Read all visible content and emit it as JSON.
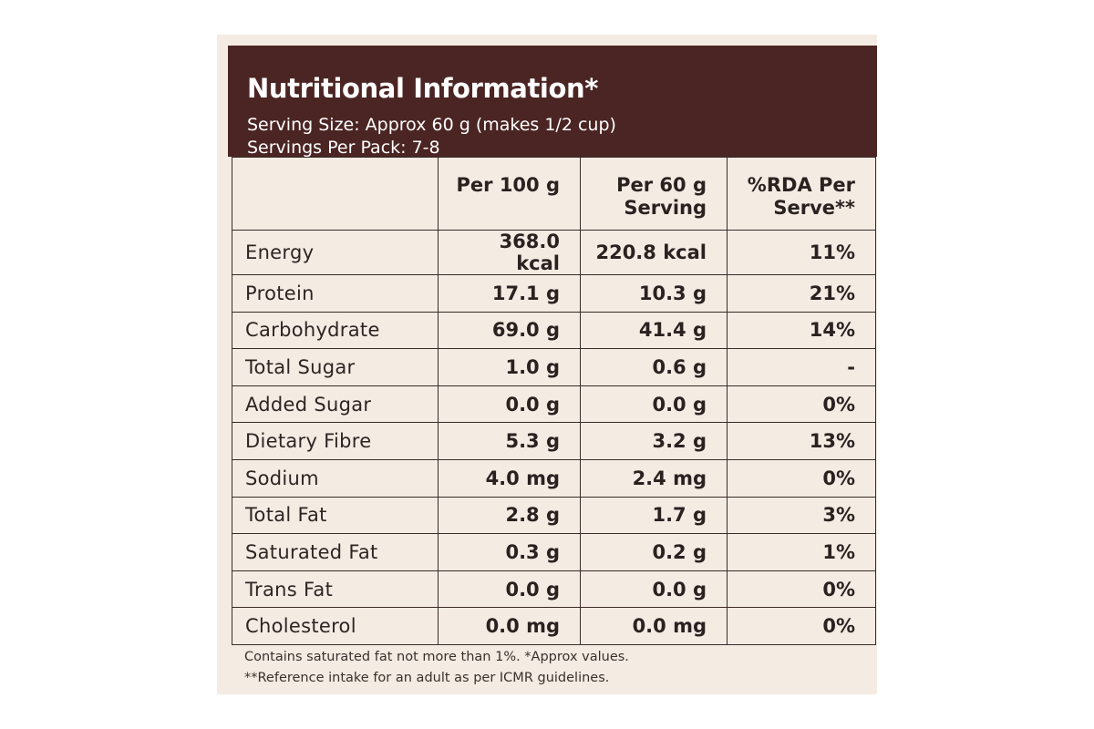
{
  "header": {
    "title": "Nutritional Information*",
    "serving_size": "Serving Size: Approx 60 g (makes 1/2 cup)",
    "servings_per_pack": "Servings Per Pack: 7-8"
  },
  "table": {
    "columns": [
      "",
      "Per 100 g",
      "Per 60 g\nServing",
      "%RDA Per\nServe**"
    ],
    "rows": [
      {
        "nutrient": "Energy",
        "per_100g": "368.0 kcal",
        "per_serving": "220.8 kcal",
        "rda": "11%"
      },
      {
        "nutrient": "Protein",
        "per_100g": "17.1 g",
        "per_serving": "10.3 g",
        "rda": "21%"
      },
      {
        "nutrient": "Carbohydrate",
        "per_100g": "69.0 g",
        "per_serving": "41.4 g",
        "rda": "14%"
      },
      {
        "nutrient": "Total Sugar",
        "per_100g": "1.0 g",
        "per_serving": "0.6 g",
        "rda": "-"
      },
      {
        "nutrient": "Added Sugar",
        "per_100g": "0.0 g",
        "per_serving": "0.0 g",
        "rda": "0%"
      },
      {
        "nutrient": "Dietary Fibre",
        "per_100g": "5.3 g",
        "per_serving": "3.2 g",
        "rda": "13%"
      },
      {
        "nutrient": "Sodium",
        "per_100g": "4.0 mg",
        "per_serving": "2.4 mg",
        "rda": "0%"
      },
      {
        "nutrient": "Total Fat",
        "per_100g": "2.8 g",
        "per_serving": "1.7 g",
        "rda": "3%"
      },
      {
        "nutrient": "Saturated Fat",
        "per_100g": "0.3 g",
        "per_serving": "0.2 g",
        "rda": "1%"
      },
      {
        "nutrient": "Trans Fat",
        "per_100g": "0.0 g",
        "per_serving": "0.0 g",
        "rda": "0%"
      },
      {
        "nutrient": "Cholesterol",
        "per_100g": "0.0 mg",
        "per_serving": "0.0 mg",
        "rda": "0%"
      }
    ]
  },
  "footnotes": [
    "Contains saturated fat not more than 1%. *Approx values.",
    "**Reference intake for an adult as per ICMR guidelines."
  ],
  "colors": {
    "header_background": "#4b2523",
    "label_background": "#f4ece3",
    "rule_lines": "#3a2a28"
  }
}
